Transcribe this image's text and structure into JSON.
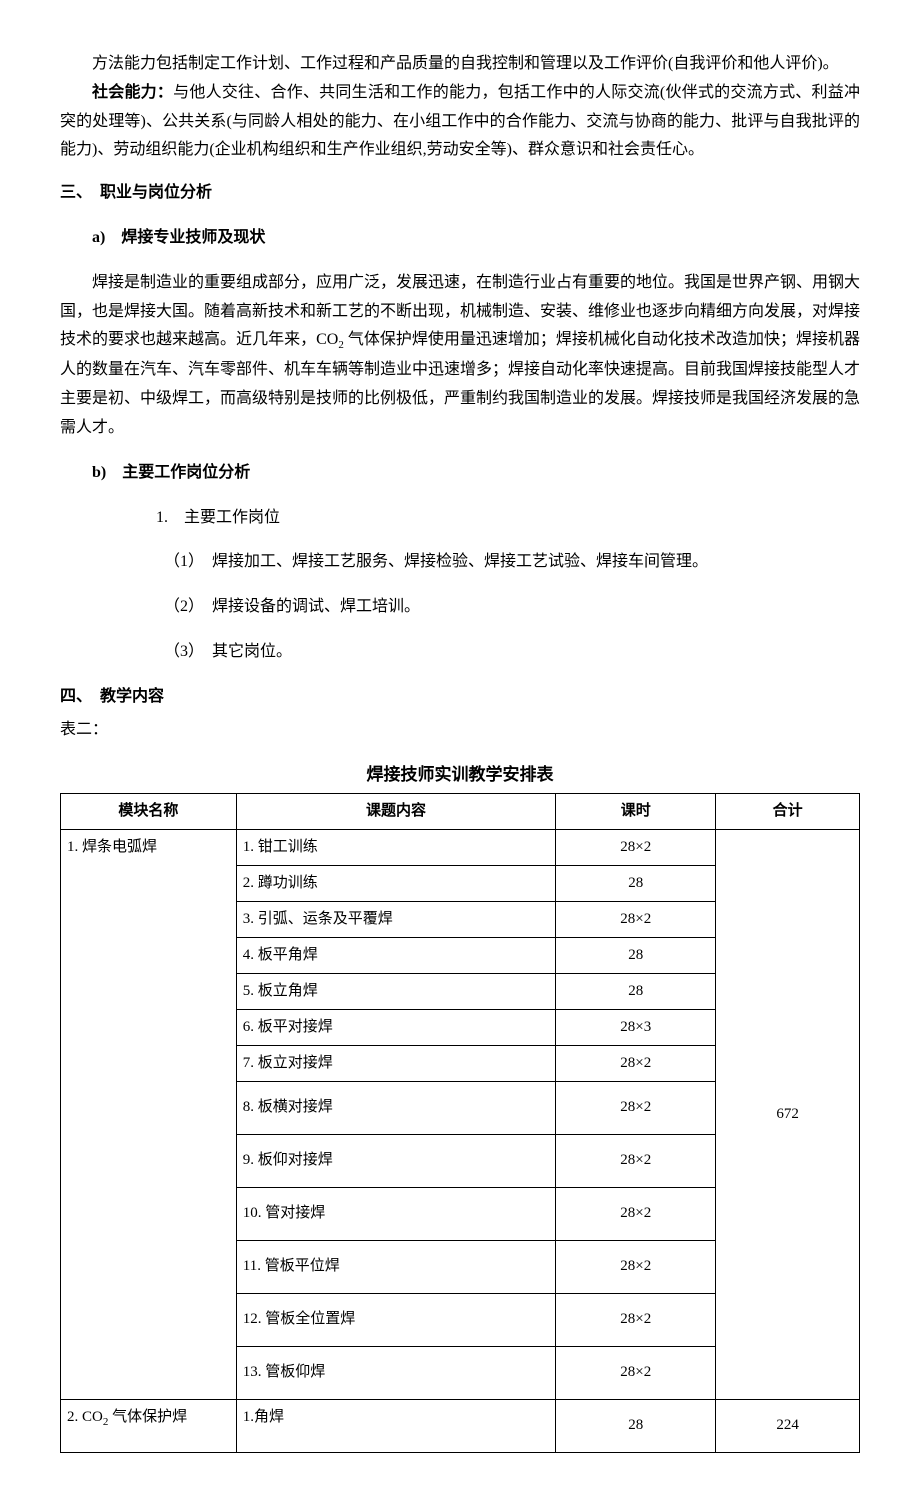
{
  "p1": "方法能力包括制定工作计划、工作过程和产品质量的自我控制和管理以及工作评价(自我评价和他人评价)。",
  "p2_label": "社会能力：",
  "p2_body": "与他人交往、合作、共同生活和工作的能力，包括工作中的人际交流(伙伴式的交流方式、利益冲突的处理等)、公共关系(与同龄人相处的能力、在小组工作中的合作能力、交流与协商的能力、批评与自我批评的能力)、劳动组织能力(企业机构组织和生产作业组织,劳动安全等)、群众意识和社会责任心。",
  "sec3_heading": "三、　职业与岗位分析",
  "sec3a_heading": "a)　焊接专业技师及现状",
  "sec3a_pre": "焊接是制造业的重要组成部分，应用广泛，发展迅速，在制造行业占有重要的地位。我国是世界产钢、用钢大国，也是焊接大国。随着高新技术和新工艺的不断出现，机械制造、安装、维修业也逐步向精细方向发展，对焊接技术的要求也越来越高。近几年来，CO",
  "sec3a_sub": "2",
  "sec3a_post": " 气体保护焊使用量迅速增加；焊接机械化自动化技术改造加快；焊接机器人的数量在汽车、汽车零部件、机车车辆等制造业中迅速增多；焊接自动化率快速提高。目前我国焊接技能型人才主要是初、中级焊工，而高级特别是技师的比例极低，严重制约我国制造业的发展。焊接技师是我国经济发展的急需人才。",
  "sec3b_heading": "b)　主要工作岗位分析",
  "sec3b_1": "1.　主要工作岗位",
  "sec3b_1_1": "（1）　焊接加工、焊接工艺服务、焊接检验、焊接工艺试验、焊接车间管理。",
  "sec3b_1_2": "（2）　焊接设备的调试、焊工培训。",
  "sec3b_1_3": "（3）　其它岗位。",
  "sec4_heading": "四、　教学内容",
  "table_label": "表二：",
  "table_title": "焊接技师实训教学安排表",
  "thead": {
    "c1": "模块名称",
    "c2": "课题内容",
    "c3": "课时",
    "c4": "合计"
  },
  "mod1_name": "1. 焊条电弧焊",
  "mod1_total": "672",
  "mod1_rows": [
    {
      "topic": "1.  钳工训练",
      "hours": "28×2"
    },
    {
      "topic": "2.  蹲功训练",
      "hours": "28"
    },
    {
      "topic": "3.  引弧、运条及平覆焊",
      "hours": "28×2"
    },
    {
      "topic": "4.  板平角焊",
      "hours": "28"
    },
    {
      "topic": "5.  板立角焊",
      "hours": "28"
    },
    {
      "topic": "6.  板平对接焊",
      "hours": "28×3"
    },
    {
      "topic": "7.  板立对接焊",
      "hours": "28×2"
    },
    {
      "topic": "8.  板横对接焊",
      "hours": "28×2"
    },
    {
      "topic": "9.  板仰对接焊",
      "hours": "28×2"
    },
    {
      "topic": "10.  管对接焊",
      "hours": "28×2"
    },
    {
      "topic": "11.  管板平位焊",
      "hours": "28×2"
    },
    {
      "topic": "12.  管板全位置焊",
      "hours": "28×2"
    },
    {
      "topic": "13.  管板仰焊",
      "hours": "28×2"
    }
  ],
  "mod2_name_pre": "2. CO",
  "mod2_name_sub": "2",
  "mod2_name_post": " 气体保护焊",
  "mod2_row1_topic": "1.角焊",
  "mod2_row1_hours": "28",
  "mod2_total": "224",
  "colwidths": {
    "c1": "22%",
    "c2": "40%",
    "c3": "20%",
    "c4": "18%"
  }
}
